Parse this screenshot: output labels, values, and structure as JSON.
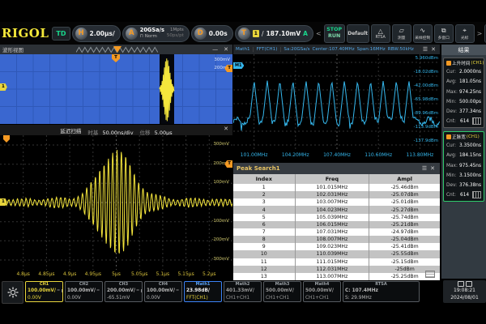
{
  "toolbar": {
    "logo": "RIGOL",
    "mode_badge": "TD",
    "horizontal": {
      "knob": "H",
      "scale": "2.00μs/"
    },
    "acquire": {
      "knob": "A",
      "sample_rate": "20GSa/s",
      "square_glyph": "⊓",
      "mode": "Norm",
      "mem_depth": "1Mpts",
      "interval": "50ps/pt"
    },
    "delay": {
      "knob": "D",
      "value": "0.00s"
    },
    "trigger": {
      "knob": "T",
      "source": "1",
      "slope_glyph": "∕",
      "level": "187.10mV",
      "sweep": "A"
    },
    "run_control": {
      "stop": "STOP",
      "run": "RUN"
    },
    "nav_left": "<",
    "nav_right": ">",
    "menu_buttons": [
      {
        "key": "default",
        "label": "Default",
        "glyph": "D"
      },
      {
        "key": "rtsa",
        "label": "RTSA",
        "glyph": "△"
      },
      {
        "key": "measure",
        "label": "测量",
        "glyph": "▱"
      },
      {
        "key": "acquire-control",
        "label": "采样控制",
        "glyph": "∿"
      },
      {
        "key": "multi-window",
        "label": "多窗口",
        "glyph": "⧉"
      },
      {
        "key": "cursor",
        "label": "光标",
        "glyph": "⌖"
      }
    ],
    "refresh_glyph": "↻"
  },
  "wave_view": {
    "title": "波形视图",
    "minimize_glyph": "—",
    "close_glyph": "✕",
    "y_labels": [
      "300mV",
      "200mV"
    ],
    "channel_badge": "1",
    "trigger_badge": "T"
  },
  "delayed": {
    "title": "延迟扫描",
    "timebase_label": "时基",
    "timebase_value": "50.00ns/div",
    "offset_label": "位移",
    "offset_value": "5.00μs",
    "close_glyph": "✕",
    "channel_badge": "1",
    "trigger_badge": "T"
  },
  "fft": {
    "header": [
      "Math1",
      "FFT(CH1)",
      "Sa:20GSa/s",
      "Center:107.40MHz",
      "Span:16MHz",
      "RBW:50kHz"
    ],
    "menu_glyph": "☰",
    "close_glyph": "✕",
    "badge": "M1"
  },
  "peak_table": {
    "title": "Peak Search1",
    "menu_glyph": "☰",
    "close_glyph": "✕",
    "headers": [
      "Index",
      "Freq",
      "Ampl"
    ],
    "rows": [
      [
        "1",
        "101.015MHz",
        "-25.46dBm"
      ],
      [
        "2",
        "102.031MHz",
        "-25.07dBm"
      ],
      [
        "3",
        "103.007MHz",
        "-25.01dBm"
      ],
      [
        "4",
        "104.023MHz",
        "-25.27dBm"
      ],
      [
        "5",
        "105.039MHz",
        "-25.74dBm"
      ],
      [
        "6",
        "106.015MHz",
        "-25.21dBm"
      ],
      [
        "7",
        "107.031MHz",
        "-24.97dBm"
      ],
      [
        "8",
        "108.007MHz",
        "-25.04dBm"
      ],
      [
        "9",
        "109.023MHz",
        "-25.41dBm"
      ],
      [
        "10",
        "110.039MHz",
        "-25.55dBm"
      ],
      [
        "11",
        "111.015MHz",
        "-25.15dBm"
      ],
      [
        "12",
        "112.031MHz",
        "-25dBm"
      ],
      [
        "13",
        "113.007MHz",
        "-25.25dBm"
      ]
    ]
  },
  "results": {
    "title": "结果",
    "cards": [
      {
        "name": "上升时间",
        "source": "(CH1)",
        "selected": false,
        "stats": [
          [
            "Cur",
            "2.0000ns"
          ],
          [
            "Avg",
            "181.05ns"
          ],
          [
            "Max",
            "974.25ns"
          ],
          [
            "Min",
            "500.00ps"
          ],
          [
            "Dev",
            "377.34ns"
          ],
          [
            "Cnt",
            "614"
          ]
        ]
      },
      {
        "name": "正脉宽",
        "source": "(CH1)",
        "selected": true,
        "stats": [
          [
            "Cur",
            "3.3500ns"
          ],
          [
            "Avg",
            "184.15ns"
          ],
          [
            "Max",
            "975.45ns"
          ],
          [
            "Min",
            "3.1500ns"
          ],
          [
            "Dev",
            "376.38ns"
          ],
          [
            "Cnt",
            "614"
          ]
        ]
      }
    ]
  },
  "bottom": {
    "channels": [
      {
        "id": "CH1",
        "scale": "100.00mV/",
        "offset": "0.00V",
        "color": "#e8d53c",
        "selected": true,
        "dc": true,
        "locked": true
      },
      {
        "id": "CH2",
        "scale": "100.00mV/",
        "offset": "0.00V",
        "color": "#b9b9b9",
        "selected": false,
        "dc": true,
        "locked": false
      },
      {
        "id": "CH3",
        "scale": "200.00mV/",
        "offset": "-65.51mV",
        "color": "#b9b9b9",
        "selected": false,
        "dc": true,
        "locked": true
      },
      {
        "id": "CH4",
        "scale": "100.00mV/",
        "offset": "0.00V",
        "color": "#b9b9b9",
        "selected": false,
        "dc": true,
        "locked": false
      }
    ],
    "maths": [
      {
        "id": "Math1",
        "scale": "23.98dB/",
        "src": "FFT(CH1)",
        "selected": true
      },
      {
        "id": "Math2",
        "scale": "401.33mV/",
        "src": "CH1+CH1",
        "selected": false
      },
      {
        "id": "Math3",
        "scale": "500.00mV/",
        "src": "CH1+CH1",
        "selected": false
      },
      {
        "id": "Math4",
        "scale": "500.00mV/",
        "src": "CH1+CH1",
        "selected": false
      }
    ],
    "rtsa": {
      "id": "RTSA",
      "line1": "C: 107.4MHz",
      "line2": "S: 29.9MHz"
    },
    "clock": {
      "time": "19:08:21",
      "date": "2024/08/01"
    }
  },
  "colors": {
    "accent_orange": "#f59a23",
    "ch1_yellow": "#e8d53c",
    "math_blue": "#3b82f6",
    "cyan_trace": "#35b8ee",
    "green": "#19d68c",
    "blue_shade": "#3a67d0"
  },
  "chart_data": [
    {
      "type": "line",
      "name": "fft_spectrum",
      "title": "Math1 FFT(CH1)",
      "x_unit": "MHz",
      "y_unit": "dBm",
      "xlim": [
        99.4,
        115.4
      ],
      "ylim": [
        -137.9,
        5.96
      ],
      "x_ticks": [
        "101.00MHz",
        "104.20MHz",
        "107.40MHz",
        "110.60MHz",
        "113.80MHz"
      ],
      "y_ticks": [
        "5.960dBm",
        "-18.02dBm",
        "-42.00dBm",
        "-65.98dBm",
        "-89.96dBm",
        "-113.9dBm",
        "-137.9dBm"
      ],
      "noise_floor_dbm": -95,
      "peaks": [
        {
          "freq_mhz": 101.015,
          "ampl_dbm": -25.46
        },
        {
          "freq_mhz": 102.031,
          "ampl_dbm": -25.07
        },
        {
          "freq_mhz": 103.007,
          "ampl_dbm": -25.01
        },
        {
          "freq_mhz": 104.023,
          "ampl_dbm": -25.27
        },
        {
          "freq_mhz": 105.039,
          "ampl_dbm": -25.74
        },
        {
          "freq_mhz": 106.015,
          "ampl_dbm": -25.21
        },
        {
          "freq_mhz": 107.031,
          "ampl_dbm": -24.97
        },
        {
          "freq_mhz": 108.007,
          "ampl_dbm": -25.04
        },
        {
          "freq_mhz": 109.023,
          "ampl_dbm": -25.41
        },
        {
          "freq_mhz": 110.039,
          "ampl_dbm": -25.55
        },
        {
          "freq_mhz": 111.015,
          "ampl_dbm": -25.15
        },
        {
          "freq_mhz": 112.031,
          "ampl_dbm": -25.0
        },
        {
          "freq_mhz": 113.007,
          "ampl_dbm": -25.25
        }
      ]
    },
    {
      "type": "line",
      "name": "delayed_sweep",
      "x_unit": "μs",
      "y_unit": "mV",
      "xlim": [
        4.75,
        5.25
      ],
      "x_ticks": [
        "4.8μs",
        "4.85μs",
        "4.9μs",
        "4.95μs",
        "5μs",
        "5.05μs",
        "5.1μs",
        "5.15μs",
        "5.2μs"
      ],
      "y_tick_values_mv": [
        300,
        200,
        100,
        -100,
        -200,
        -300
      ],
      "timebase": "50.00ns/div",
      "carrier_mhz": 107.4,
      "center_us": 5.0,
      "peak_amplitude_mv": 245,
      "description": "AM modulated RF burst centered at 5μs"
    }
  ]
}
